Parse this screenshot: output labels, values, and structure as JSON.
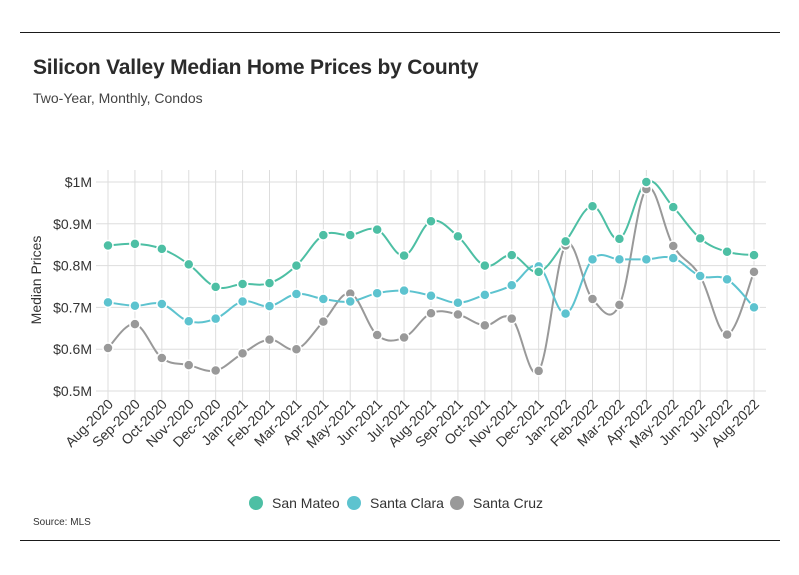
{
  "header": {
    "title": "Silicon Valley Median Home Prices by County",
    "subtitle": "Two-Year, Monthly, Condos"
  },
  "footer": {
    "source": "Source:  MLS"
  },
  "colors": {
    "san_mateo": "#4dbfa4",
    "santa_clara": "#5dc3cf",
    "santa_cruz": "#999999",
    "grid": "#dddddd"
  },
  "chart_data": {
    "type": "line",
    "title": "Silicon Valley Median Home Prices by County",
    "subtitle": "Two-Year, Monthly, Condos",
    "xlabel": "",
    "ylabel": "Median Prices",
    "ylim": [
      0.5,
      1.0
    ],
    "yticks": [
      {
        "value": 1.0,
        "label": "$1M"
      },
      {
        "value": 0.9,
        "label": "$0.9M"
      },
      {
        "value": 0.8,
        "label": "$0.8M"
      },
      {
        "value": 0.7,
        "label": "$0.7M"
      },
      {
        "value": 0.6,
        "label": "$0.6M"
      },
      {
        "value": 0.5,
        "label": "$0.5M"
      }
    ],
    "categories": [
      "Aug-2020",
      "Sep-2020",
      "Oct-2020",
      "Nov-2020",
      "Dec-2020",
      "Jan-2021",
      "Feb-2021",
      "Mar-2021",
      "Apr-2021",
      "May-2021",
      "Jun-2021",
      "Jul-2021",
      "Aug-2021",
      "Sep-2021",
      "Oct-2021",
      "Nov-2021",
      "Dec-2021",
      "Jan-2022",
      "Feb-2022",
      "Mar-2022",
      "Apr-2022",
      "May-2022",
      "Jun-2022",
      "Jul-2022",
      "Aug-2022"
    ],
    "grid": true,
    "legend_position": "bottom",
    "series": [
      {
        "name": "San Mateo",
        "color": "#4dbfa4",
        "values": [
          0.848,
          0.852,
          0.84,
          0.803,
          0.749,
          0.756,
          0.758,
          0.8,
          0.873,
          0.873,
          0.886,
          0.824,
          0.906,
          0.87,
          0.8,
          0.825,
          0.785,
          0.858,
          0.942,
          0.864,
          1.0,
          0.94,
          0.865,
          0.833,
          0.825
        ]
      },
      {
        "name": "Santa Clara",
        "color": "#5dc3cf",
        "values": [
          0.712,
          0.704,
          0.708,
          0.667,
          0.673,
          0.714,
          0.703,
          0.732,
          0.72,
          0.714,
          0.734,
          0.74,
          0.728,
          0.711,
          0.73,
          0.753,
          0.798,
          0.685,
          0.815,
          0.815,
          0.815,
          0.818,
          0.775,
          0.767,
          0.7
        ]
      },
      {
        "name": "Santa Cruz",
        "color": "#999999",
        "values": [
          0.603,
          0.66,
          0.579,
          0.562,
          0.549,
          0.59,
          0.623,
          0.6,
          0.666,
          0.733,
          0.634,
          0.628,
          0.686,
          0.683,
          0.657,
          0.673,
          0.548,
          0.848,
          0.72,
          0.706,
          0.983,
          0.847,
          0.775,
          0.635,
          0.785
        ]
      }
    ]
  }
}
